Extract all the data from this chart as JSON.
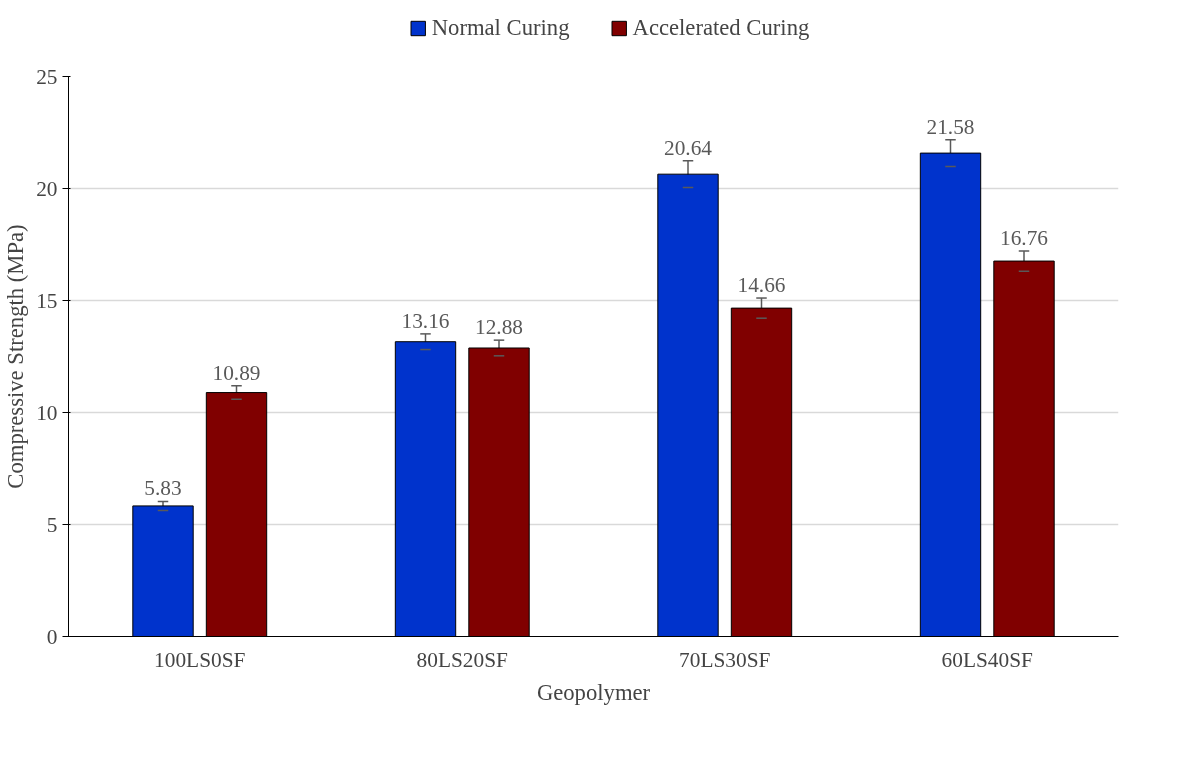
{
  "chart_data": {
    "type": "bar",
    "xlabel": "Geopolymer",
    "ylabel": "Compressive Strength (MPa)",
    "categories": [
      "100LS0SF",
      "80LS20SF",
      "70LS30SF",
      "60LS40SF"
    ],
    "series": [
      {
        "name": "Normal Curing",
        "color": "#0033cc",
        "values": [
          5.83,
          13.16,
          20.64,
          21.58
        ],
        "errors": [
          0.2,
          0.35,
          0.6,
          0.6
        ]
      },
      {
        "name": "Accelerated Curing",
        "color": "#800000",
        "values": [
          10.89,
          12.88,
          14.66,
          16.76
        ],
        "errors": [
          0.3,
          0.35,
          0.45,
          0.45
        ]
      }
    ],
    "ylim": [
      0,
      25
    ],
    "yticks": [
      0,
      5,
      10,
      15,
      20,
      25
    ],
    "grid": "y",
    "legend": "top",
    "data_labels": true
  }
}
